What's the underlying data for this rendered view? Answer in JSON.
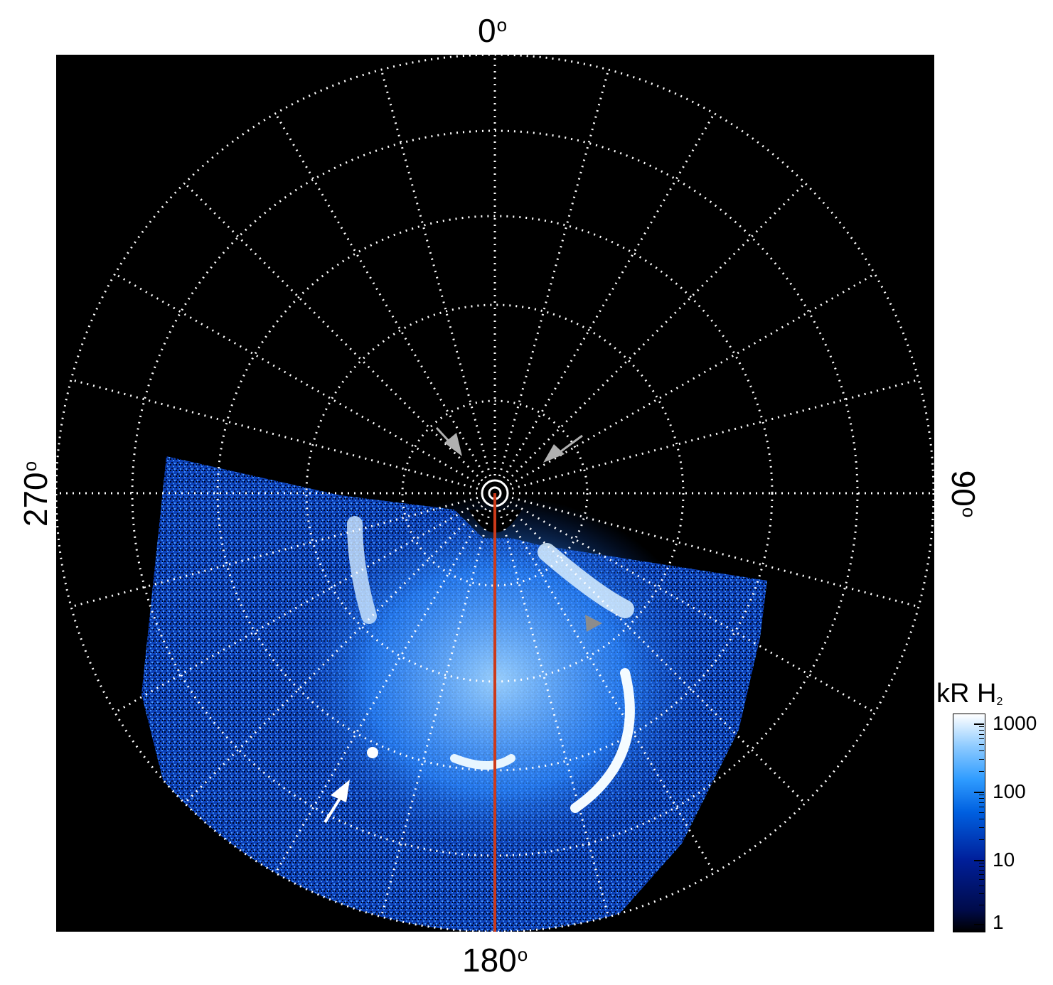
{
  "labels": {
    "top": "0",
    "bottom": "180",
    "left": "270",
    "right": "90",
    "deg_symbol": "o"
  },
  "colorbar": {
    "title": "kR H",
    "title_sub": "2",
    "ticks": [
      "1000",
      "100",
      "10",
      "1"
    ],
    "colors": [
      "#000000",
      "#001f9a",
      "#0060e0",
      "#2f9cff",
      "#ffffff"
    ]
  },
  "colors": {
    "background": "#000000",
    "grid": "#ffffff",
    "meridian_line": "#cc3a1a",
    "arrow_gray": "#b0b0b0",
    "arrow_white": "#ffffff"
  }
}
